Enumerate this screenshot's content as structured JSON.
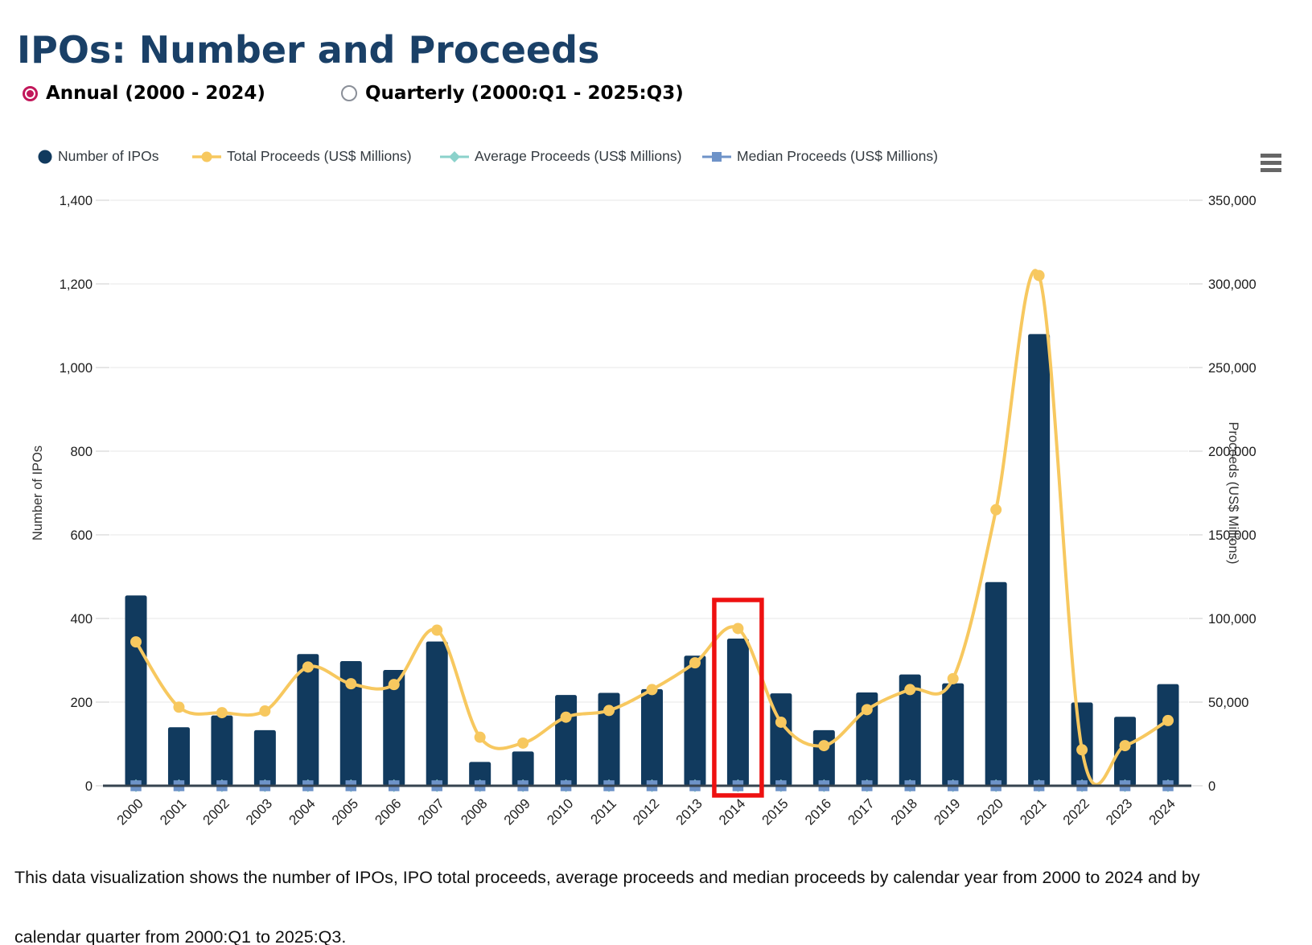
{
  "header": {
    "title": "IPOs: Number and Proceeds"
  },
  "view_toggle": {
    "options": [
      {
        "label": "Annual (2000 - 2024)",
        "selected": true
      },
      {
        "label": "Quarterly (2000:Q1 - 2025:Q3)",
        "selected": false
      }
    ]
  },
  "legend": {
    "items": [
      {
        "label": "Number of IPOs",
        "marker": "circle",
        "color": "#113a5e"
      },
      {
        "label": "Total Proceeds (US$ Millions)",
        "marker": "line-circle",
        "color": "#f7c85f"
      },
      {
        "label": "Average Proceeds (US$ Millions)",
        "marker": "line-diamond",
        "color": "#8bd2cb"
      },
      {
        "label": "Median Proceeds (US$ Millions)",
        "marker": "line-square",
        "color": "#6e93c8"
      }
    ]
  },
  "menu_icon": "hamburger-menu",
  "chart_data": {
    "type": "combo",
    "categories": [
      "2000",
      "2001",
      "2002",
      "2003",
      "2004",
      "2005",
      "2006",
      "2007",
      "2008",
      "2009",
      "2010",
      "2011",
      "2012",
      "2013",
      "2014",
      "2015",
      "2016",
      "2017",
      "2018",
      "2019",
      "2020",
      "2021",
      "2022",
      "2023",
      "2024"
    ],
    "series": [
      {
        "name": "Number of IPOs",
        "type": "bar",
        "axis": "left",
        "color": "#113a5e",
        "values": [
          455,
          140,
          168,
          133,
          315,
          298,
          277,
          345,
          57,
          82,
          217,
          222,
          231,
          311,
          352,
          221,
          133,
          223,
          266,
          245,
          487,
          1080,
          199,
          165,
          243
        ]
      },
      {
        "name": "Total Proceeds (US$ Millions)",
        "type": "line",
        "axis": "right",
        "color": "#f7c85f",
        "marker": "circle",
        "values": [
          86000,
          47000,
          43700,
          44700,
          71000,
          61000,
          60500,
          93000,
          29000,
          25500,
          41000,
          45000,
          57500,
          73500,
          94000,
          38000,
          24000,
          45500,
          57500,
          64000,
          165000,
          305000,
          21500,
          24000,
          39000
        ]
      },
      {
        "name": "Average Proceeds (US$ Millions)",
        "type": "line",
        "axis": "right",
        "color": "#8bd2cb",
        "marker": "diamond",
        "note": "plots at ~0 on this scale; markers hidden behind median markers",
        "values": [
          0,
          0,
          0,
          0,
          0,
          0,
          0,
          0,
          0,
          0,
          0,
          0,
          0,
          0,
          0,
          0,
          0,
          0,
          0,
          0,
          0,
          0,
          0,
          0,
          0
        ]
      },
      {
        "name": "Median Proceeds (US$ Millions)",
        "type": "line",
        "axis": "right",
        "color": "#6e93c8",
        "marker": "square",
        "note": "plots at ~0 on this scale",
        "values": [
          0,
          0,
          0,
          0,
          0,
          0,
          0,
          0,
          0,
          0,
          0,
          0,
          0,
          0,
          0,
          0,
          0,
          0,
          0,
          0,
          0,
          0,
          0,
          0,
          0
        ]
      }
    ],
    "left_axis": {
      "label": "Number of IPOs",
      "min": 0,
      "max": 1400,
      "tick_step": 200
    },
    "right_axis": {
      "label": "Proceeds (US$ Millions)",
      "min": 0,
      "max": 350000,
      "tick_step": 50000
    },
    "grid": true,
    "legend_position": "top",
    "highlight": {
      "category": "2014",
      "color": "#ee1111"
    }
  },
  "caption": {
    "text": "This data visualization shows the number of IPOs, IPO total proceeds, average proceeds and median proceeds by calendar year from 2000 to 2024 and by calendar quarter from 2000:Q1 to 2025:Q3."
  }
}
